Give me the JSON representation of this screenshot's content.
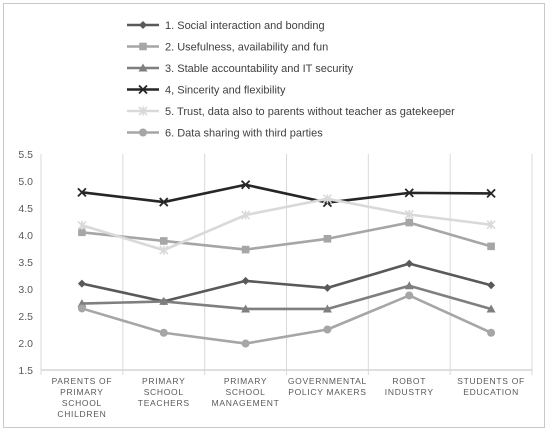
{
  "chart_data": {
    "type": "line",
    "title": "",
    "xlabel": "",
    "ylabel": "",
    "ylim": [
      1.5,
      5.5
    ],
    "y_ticks": [
      "1.5",
      "2.0",
      "2.5",
      "3.0",
      "3.5",
      "4.0",
      "4.5",
      "5.0",
      "5.5"
    ],
    "grid": "vertical category separators",
    "legend_position": "top",
    "categories": [
      [
        "PARENTS OF",
        "PRIMARY",
        "SCHOOL",
        "CHILDREN"
      ],
      [
        "PRIMARY",
        "SCHOOL",
        "TEACHERS"
      ],
      [
        "PRIMARY",
        "SCHOOL",
        "MANAGEMENT"
      ],
      [
        "GOVERNMENTAL",
        "POLICY MAKERS"
      ],
      [
        "ROBOT",
        "INDUSTRY"
      ],
      [
        "STUDENTS OF",
        "EDUCATION"
      ]
    ],
    "series": [
      {
        "name": "1. Social interaction and bonding",
        "color": "#595959",
        "marker": "diamond",
        "values": [
          3.1,
          2.77,
          3.15,
          3.02,
          3.47,
          3.07
        ]
      },
      {
        "name": "2. Usefulness, availability and fun",
        "color": "#a6a6a6",
        "marker": "square",
        "values": [
          4.05,
          3.89,
          3.73,
          3.93,
          4.23,
          3.79
        ]
      },
      {
        "name": "3. Stable accountability and IT security",
        "color": "#7f7f7f",
        "marker": "triangle",
        "values": [
          2.73,
          2.77,
          2.63,
          2.63,
          3.06,
          2.63
        ]
      },
      {
        "name": "4, Sincerity and flexibility",
        "color": "#262626",
        "marker": "x",
        "values": [
          4.79,
          4.61,
          4.93,
          4.6,
          4.78,
          4.77
        ]
      },
      {
        "name": "5. Trust, data also to parents without teacher as gatekeeper",
        "color": "#d9d9d9",
        "marker": "asterisk",
        "values": [
          4.18,
          3.72,
          4.37,
          4.67,
          4.38,
          4.19
        ]
      },
      {
        "name": "6. Data sharing with third parties",
        "color": "#a6a6a6",
        "marker": "circle",
        "values": [
          2.64,
          2.19,
          1.99,
          2.25,
          2.88,
          2.19
        ]
      }
    ]
  }
}
